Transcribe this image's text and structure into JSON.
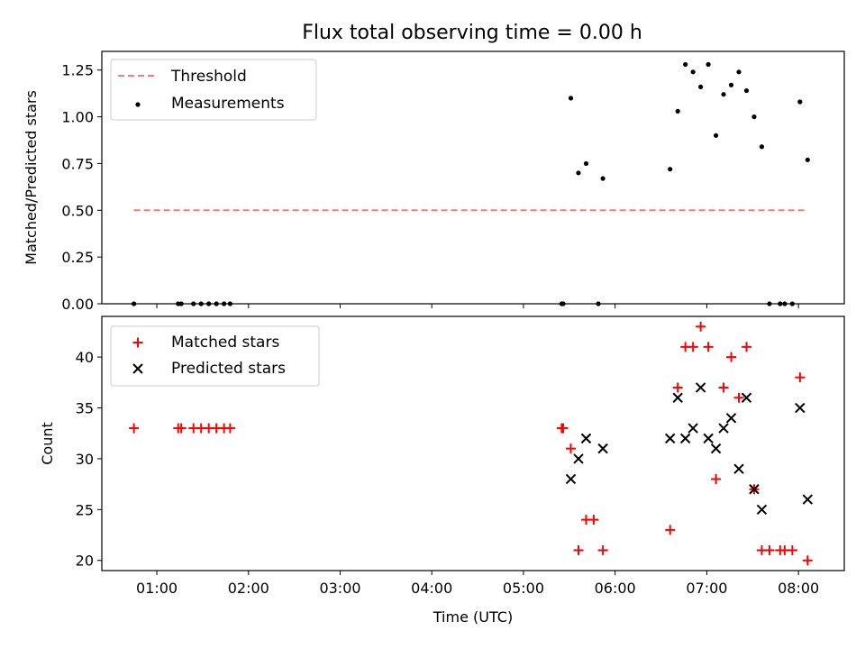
{
  "chart_data": [
    {
      "type": "scatter",
      "title": "Flux total observing time = 0.00 h",
      "xlabel": "",
      "ylabel": "Matched/Predicted stars",
      "xlim": [
        "00:24",
        "08:30"
      ],
      "ylim": [
        0,
        1.35
      ],
      "yticks": [
        "0.00",
        "0.25",
        "0.50",
        "0.75",
        "1.00",
        "1.25"
      ],
      "grid": false,
      "legend_position": "top-left",
      "threshold": {
        "name": "Threshold",
        "color": "#ff7777",
        "value": 0.5,
        "x_range": [
          "00:45",
          "08:06"
        ]
      },
      "series": [
        {
          "name": "Measurements",
          "color": "#000000",
          "marker": "dot",
          "points": [
            [
              "00:45",
              0.0
            ],
            [
              "01:14",
              0.0
            ],
            [
              "01:16",
              0.0
            ],
            [
              "01:24",
              0.0
            ],
            [
              "01:29",
              0.0
            ],
            [
              "01:34",
              0.0
            ],
            [
              "01:39",
              0.0
            ],
            [
              "01:44",
              0.0
            ],
            [
              "01:48",
              0.0
            ],
            [
              "05:25",
              0.0
            ],
            [
              "05:26",
              0.0
            ],
            [
              "05:31",
              1.1
            ],
            [
              "05:36",
              0.7
            ],
            [
              "05:41",
              0.75
            ],
            [
              "05:49",
              0.0
            ],
            [
              "05:52",
              0.67
            ],
            [
              "06:36",
              0.72
            ],
            [
              "06:41",
              1.03
            ],
            [
              "06:46",
              1.28
            ],
            [
              "06:51",
              1.24
            ],
            [
              "06:56",
              1.16
            ],
            [
              "07:01",
              1.28
            ],
            [
              "07:06",
              0.9
            ],
            [
              "07:11",
              1.12
            ],
            [
              "07:16",
              1.17
            ],
            [
              "07:21",
              1.24
            ],
            [
              "07:26",
              1.14
            ],
            [
              "07:31",
              1.0
            ],
            [
              "07:36",
              0.84
            ],
            [
              "07:41",
              0.0
            ],
            [
              "07:48",
              0.0
            ],
            [
              "07:51",
              0.0
            ],
            [
              "07:56",
              0.0
            ],
            [
              "08:01",
              1.08
            ],
            [
              "08:06",
              0.77
            ]
          ]
        }
      ]
    },
    {
      "type": "scatter",
      "title": "",
      "xlabel": "Time (UTC)",
      "ylabel": "Count",
      "xlim": [
        "00:24",
        "08:30"
      ],
      "ylim": [
        19,
        44
      ],
      "xticks": [
        "01:00",
        "02:00",
        "03:00",
        "04:00",
        "05:00",
        "06:00",
        "07:00",
        "08:00"
      ],
      "yticks": [
        "20",
        "25",
        "30",
        "35",
        "40"
      ],
      "grid": false,
      "legend_position": "top-left",
      "series": [
        {
          "name": "Matched stars",
          "color": "#ff0000",
          "marker": "plus",
          "points": [
            [
              "00:45",
              33
            ],
            [
              "01:14",
              33
            ],
            [
              "01:16",
              33
            ],
            [
              "01:24",
              33
            ],
            [
              "01:29",
              33
            ],
            [
              "01:34",
              33
            ],
            [
              "01:39",
              33
            ],
            [
              "01:44",
              33
            ],
            [
              "01:48",
              33
            ],
            [
              "05:25",
              33
            ],
            [
              "05:26",
              33
            ],
            [
              "05:31",
              31
            ],
            [
              "05:36",
              21
            ],
            [
              "05:41",
              24
            ],
            [
              "05:46",
              24
            ],
            [
              "05:52",
              21
            ],
            [
              "06:36",
              23
            ],
            [
              "06:41",
              37
            ],
            [
              "06:46",
              41
            ],
            [
              "06:51",
              41
            ],
            [
              "06:56",
              43
            ],
            [
              "07:01",
              41
            ],
            [
              "07:06",
              28
            ],
            [
              "07:11",
              37
            ],
            [
              "07:16",
              40
            ],
            [
              "07:21",
              36
            ],
            [
              "07:26",
              41
            ],
            [
              "07:31",
              27
            ],
            [
              "07:36",
              21
            ],
            [
              "07:41",
              21
            ],
            [
              "07:48",
              21
            ],
            [
              "07:51",
              21
            ],
            [
              "07:56",
              21
            ],
            [
              "08:01",
              38
            ],
            [
              "08:06",
              20
            ]
          ]
        },
        {
          "name": "Predicted stars",
          "color": "#000000",
          "marker": "x",
          "points": [
            [
              "05:31",
              28
            ],
            [
              "05:36",
              30
            ],
            [
              "05:41",
              32
            ],
            [
              "05:52",
              31
            ],
            [
              "06:36",
              32
            ],
            [
              "06:41",
              36
            ],
            [
              "06:46",
              32
            ],
            [
              "06:51",
              33
            ],
            [
              "06:56",
              37
            ],
            [
              "07:01",
              32
            ],
            [
              "07:06",
              31
            ],
            [
              "07:11",
              33
            ],
            [
              "07:16",
              34
            ],
            [
              "07:21",
              29
            ],
            [
              "07:26",
              36
            ],
            [
              "07:31",
              27
            ],
            [
              "07:36",
              25
            ],
            [
              "08:01",
              35
            ],
            [
              "08:06",
              26
            ]
          ]
        }
      ]
    }
  ]
}
